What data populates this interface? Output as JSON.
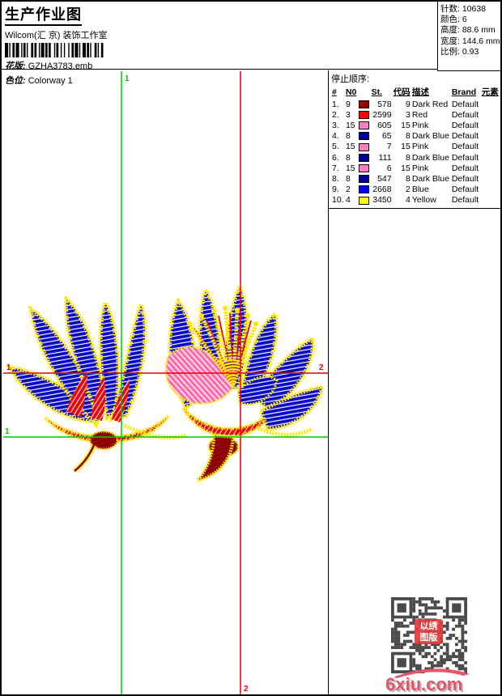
{
  "header": {
    "title": "生产作业图",
    "company": "Wilcom(汇 京) 装饰工作室",
    "pattern_label": "花版:",
    "pattern_value": "GZHA3783.emb",
    "colorway_label": "色位:",
    "colorway_value": "Colorway 1"
  },
  "stats": {
    "stitches_label": "针数:",
    "stitches_value": "10638",
    "colors_label": "颜色:",
    "colors_value": "6",
    "height_label": "高度:",
    "height_value": "88.6 mm",
    "width_label": "宽度:",
    "width_value": "144.6 mm",
    "scale_label": "比例:",
    "scale_value": "0.93"
  },
  "stop_sequence": {
    "title": "停止顺序:",
    "columns": [
      "#",
      "N0",
      "",
      "St.",
      "代码",
      "描述",
      "Brand",
      "元素"
    ],
    "rows": [
      {
        "idx": "1.",
        "n0": "9",
        "color": "#990000",
        "st": "578",
        "code": "9",
        "desc": "Dark Red",
        "brand": "Default",
        "element": ""
      },
      {
        "idx": "2.",
        "n0": "3",
        "color": "#ff0000",
        "st": "2599",
        "code": "3",
        "desc": "Red",
        "brand": "Default",
        "element": ""
      },
      {
        "idx": "3.",
        "n0": "15",
        "color": "#ff80c0",
        "st": "605",
        "code": "15",
        "desc": "Pink",
        "brand": "Default",
        "element": ""
      },
      {
        "idx": "4.",
        "n0": "8",
        "color": "#000099",
        "st": "65",
        "code": "8",
        "desc": "Dark Blue",
        "brand": "Default",
        "element": ""
      },
      {
        "idx": "5.",
        "n0": "15",
        "color": "#ff80c0",
        "st": "7",
        "code": "15",
        "desc": "Pink",
        "brand": "Default",
        "element": ""
      },
      {
        "idx": "6.",
        "n0": "8",
        "color": "#000099",
        "st": "111",
        "code": "8",
        "desc": "Dark Blue",
        "brand": "Default",
        "element": ""
      },
      {
        "idx": "7.",
        "n0": "15",
        "color": "#ff80c0",
        "st": "6",
        "code": "15",
        "desc": "Pink",
        "brand": "Default",
        "element": ""
      },
      {
        "idx": "8.",
        "n0": "8",
        "color": "#000099",
        "st": "547",
        "code": "8",
        "desc": "Dark Blue",
        "brand": "Default",
        "element": ""
      },
      {
        "idx": "9.",
        "n0": "2",
        "color": "#0000ff",
        "st": "2668",
        "code": "2",
        "desc": "Blue",
        "brand": "Default",
        "element": ""
      },
      {
        "idx": "10.",
        "n0": "4",
        "color": "#ffff00",
        "st": "3450",
        "code": "4",
        "desc": "Yellow",
        "brand": "Default",
        "element": ""
      }
    ]
  },
  "design": {
    "marker_vline_green_label": "1",
    "marker_vline_red_label": "2",
    "marker_hline_red_left_label": "1",
    "marker_hline_red_right_label": "2",
    "marker_hline_green_label": "1",
    "line_green_color": "#00c800",
    "line_red_color": "#e60000"
  },
  "qr": {
    "seal_line1": "以绣",
    "seal_line2": "图版"
  },
  "watermark": {
    "text": "6xiu.com",
    "color": "#e2556a"
  }
}
